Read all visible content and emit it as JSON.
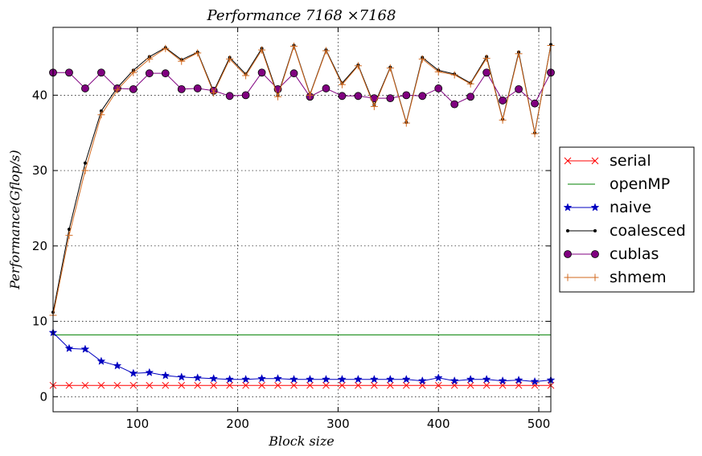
{
  "chart_data": {
    "type": "line",
    "title": "Performance 7168 ×7168",
    "xlabel": "Block size",
    "ylabel": "Performance(Gflop/s)",
    "xlim": [
      16,
      512
    ],
    "ylim": [
      -2,
      49
    ],
    "xticks": [
      100,
      200,
      300,
      400,
      500
    ],
    "yticks": [
      0,
      10,
      20,
      30,
      40
    ],
    "grid": true,
    "legend_position": "right",
    "x": [
      16,
      32,
      48,
      64,
      80,
      96,
      112,
      128,
      144,
      160,
      176,
      192,
      208,
      224,
      240,
      256,
      272,
      288,
      304,
      320,
      336,
      352,
      368,
      384,
      400,
      416,
      432,
      448,
      464,
      480,
      496,
      512
    ],
    "series": [
      {
        "name": "serial",
        "color": "#ff0000",
        "marker": "x",
        "values": [
          1.5,
          1.5,
          1.5,
          1.5,
          1.5,
          1.5,
          1.5,
          1.5,
          1.5,
          1.5,
          1.5,
          1.5,
          1.5,
          1.5,
          1.5,
          1.5,
          1.5,
          1.5,
          1.5,
          1.5,
          1.5,
          1.5,
          1.5,
          1.5,
          1.5,
          1.5,
          1.5,
          1.5,
          1.5,
          1.5,
          1.5,
          1.5
        ]
      },
      {
        "name": "openMP",
        "color": "#008000",
        "marker": "none",
        "values": [
          8.2,
          8.2,
          8.2,
          8.2,
          8.2,
          8.2,
          8.2,
          8.2,
          8.2,
          8.2,
          8.2,
          8.2,
          8.2,
          8.2,
          8.2,
          8.2,
          8.2,
          8.2,
          8.2,
          8.2,
          8.2,
          8.2,
          8.2,
          8.2,
          8.2,
          8.2,
          8.2,
          8.2,
          8.2,
          8.2,
          8.2,
          8.2
        ]
      },
      {
        "name": "naive",
        "color": "#0000c0",
        "marker": "star",
        "values": [
          8.5,
          6.4,
          6.3,
          4.7,
          4.1,
          3.1,
          3.2,
          2.8,
          2.6,
          2.5,
          2.4,
          2.3,
          2.3,
          2.4,
          2.4,
          2.3,
          2.3,
          2.3,
          2.3,
          2.3,
          2.3,
          2.3,
          2.3,
          2.1,
          2.5,
          2.1,
          2.3,
          2.3,
          2.1,
          2.2,
          2.0,
          2.2
        ]
      },
      {
        "name": "coalesced",
        "color": "#000000",
        "marker": "dot",
        "values": [
          11.2,
          22.2,
          31.0,
          37.9,
          41.0,
          43.3,
          45.1,
          46.3,
          44.7,
          45.7,
          40.5,
          45.0,
          42.8,
          46.2,
          40.0,
          46.6,
          40.1,
          46.0,
          41.6,
          44.0,
          38.7,
          43.7,
          36.4,
          45.0,
          43.3,
          42.8,
          41.6,
          45.1,
          36.8,
          45.7,
          35.0,
          46.7
        ]
      },
      {
        "name": "cublas",
        "color": "#800080",
        "marker": "circle",
        "values": [
          43.0,
          43.0,
          40.9,
          43.0,
          40.9,
          40.8,
          42.9,
          42.9,
          40.8,
          40.9,
          40.6,
          39.9,
          40.0,
          43.0,
          40.8,
          42.9,
          39.8,
          40.9,
          39.9,
          39.9,
          39.6,
          39.6,
          40.0,
          39.9,
          40.9,
          38.8,
          39.8,
          43.0,
          39.3,
          40.8,
          38.9,
          43.0
        ]
      },
      {
        "name": "shmem",
        "color": "#d2691e",
        "marker": "plus",
        "values": [
          10.8,
          21.4,
          30.0,
          37.4,
          40.7,
          43.0,
          44.8,
          46.2,
          44.5,
          45.6,
          40.3,
          44.8,
          42.6,
          46.0,
          39.8,
          46.5,
          40.0,
          45.9,
          41.4,
          43.9,
          38.5,
          43.6,
          36.3,
          44.8,
          43.1,
          42.7,
          41.5,
          44.9,
          36.7,
          45.5,
          34.9,
          46.6
        ]
      }
    ]
  }
}
